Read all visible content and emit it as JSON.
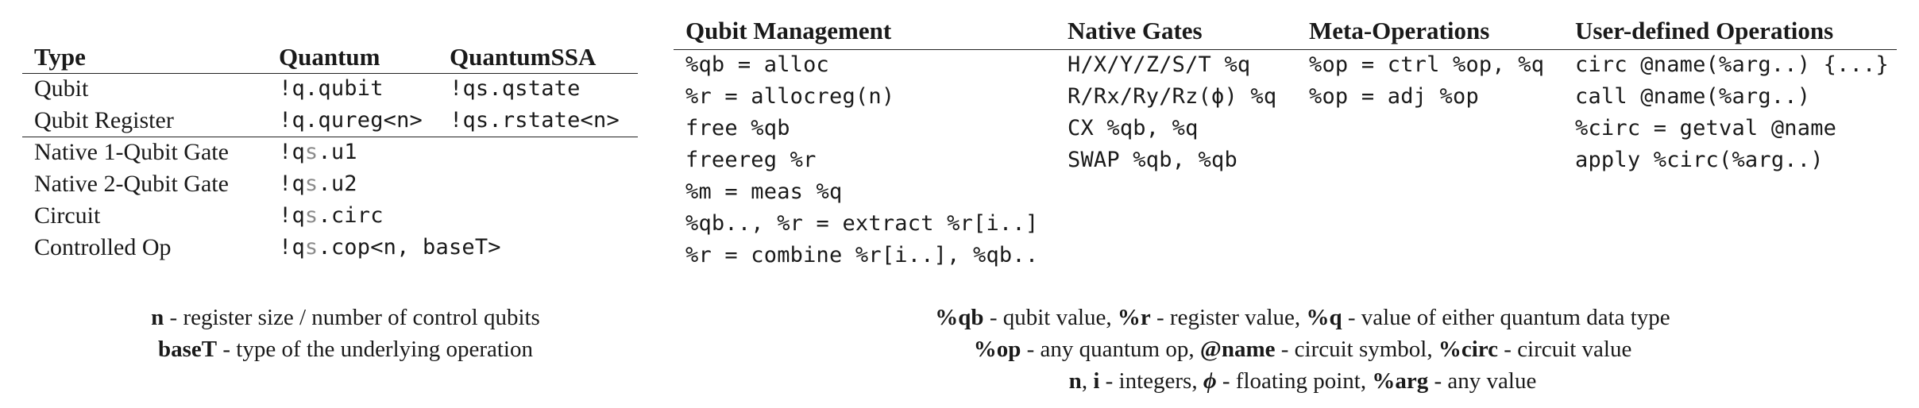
{
  "left_table": {
    "headers": [
      "Type",
      "Quantum",
      "QuantumSSA"
    ],
    "rows": [
      {
        "type": "Qubit",
        "quantum": "!q.qubit",
        "ssa": "!qs.qstate"
      },
      {
        "type": "Qubit Register",
        "quantum": "!q.qureg<n>",
        "ssa": "!qs.rstate<n>"
      },
      {
        "type": "Native 1-Qubit Gate",
        "op": [
          {
            "t": "!q",
            "g": false
          },
          {
            "t": "s",
            "g": true
          },
          {
            "t": ".u1",
            "g": false
          }
        ]
      },
      {
        "type": "Native 2-Qubit Gate",
        "op": [
          {
            "t": "!q",
            "g": false
          },
          {
            "t": "s",
            "g": true
          },
          {
            "t": ".u2",
            "g": false
          }
        ]
      },
      {
        "type": "Circuit",
        "op": [
          {
            "t": "!q",
            "g": false
          },
          {
            "t": "s",
            "g": true
          },
          {
            "t": ".circ",
            "g": false
          }
        ]
      },
      {
        "type": "Controlled Op",
        "op": [
          {
            "t": "!q",
            "g": false
          },
          {
            "t": "s",
            "g": true
          },
          {
            "t": ".cop<n, baseT>",
            "g": false
          }
        ]
      }
    ]
  },
  "right_table": {
    "columns": [
      {
        "header": "Qubit Management",
        "items": [
          "%qb = alloc",
          "%r = allocreg(n)",
          "free %qb",
          "freereg %r",
          "%m = meas %q",
          "%qb.., %r = extract %r[i..]",
          "%r = combine %r[i..], %qb.."
        ]
      },
      {
        "header": "Native Gates",
        "items": [
          "H/X/Y/Z/S/T %q",
          "R/Rx/Ry/Rz(ϕ) %q",
          "CX %qb, %q",
          "SWAP %qb, %qb"
        ]
      },
      {
        "header": "Meta-Operations",
        "items": [
          "%op = ctrl %op, %q",
          "%op = adj %op"
        ]
      },
      {
        "header": "User-defined Operations",
        "items": [
          "circ @name(%arg..) {...}",
          "call @name(%arg..)",
          "%circ = getval @name",
          "apply %circ(%arg..)"
        ]
      }
    ]
  },
  "left_legend": [
    [
      {
        "t": "n",
        "b": true
      },
      {
        "t": " - register size / number of control qubits"
      }
    ],
    [
      {
        "t": "baseT",
        "b": true
      },
      {
        "t": " - type of the underlying operation"
      }
    ]
  ],
  "right_legend": [
    [
      {
        "t": "%qb",
        "b": true
      },
      {
        "t": " - qubit value, "
      },
      {
        "t": "%r",
        "b": true
      },
      {
        "t": " - register value, "
      },
      {
        "t": "%q",
        "b": true
      },
      {
        "t": " - value of either quantum data type"
      }
    ],
    [
      {
        "t": "%op",
        "b": true
      },
      {
        "t": " - any quantum op, "
      },
      {
        "t": "@name",
        "b": true
      },
      {
        "t": " - circuit symbol, "
      },
      {
        "t": "%circ",
        "b": true
      },
      {
        "t": " - circuit value"
      }
    ],
    [
      {
        "t": "n",
        "b": true
      },
      {
        "t": ", "
      },
      {
        "t": "i",
        "b": true
      },
      {
        "t": " - integers, "
      },
      {
        "t": "ϕ",
        "b": true,
        "i": true
      },
      {
        "t": " - floating point, "
      },
      {
        "t": "%arg",
        "b": true
      },
      {
        "t": " - any value"
      }
    ]
  ]
}
